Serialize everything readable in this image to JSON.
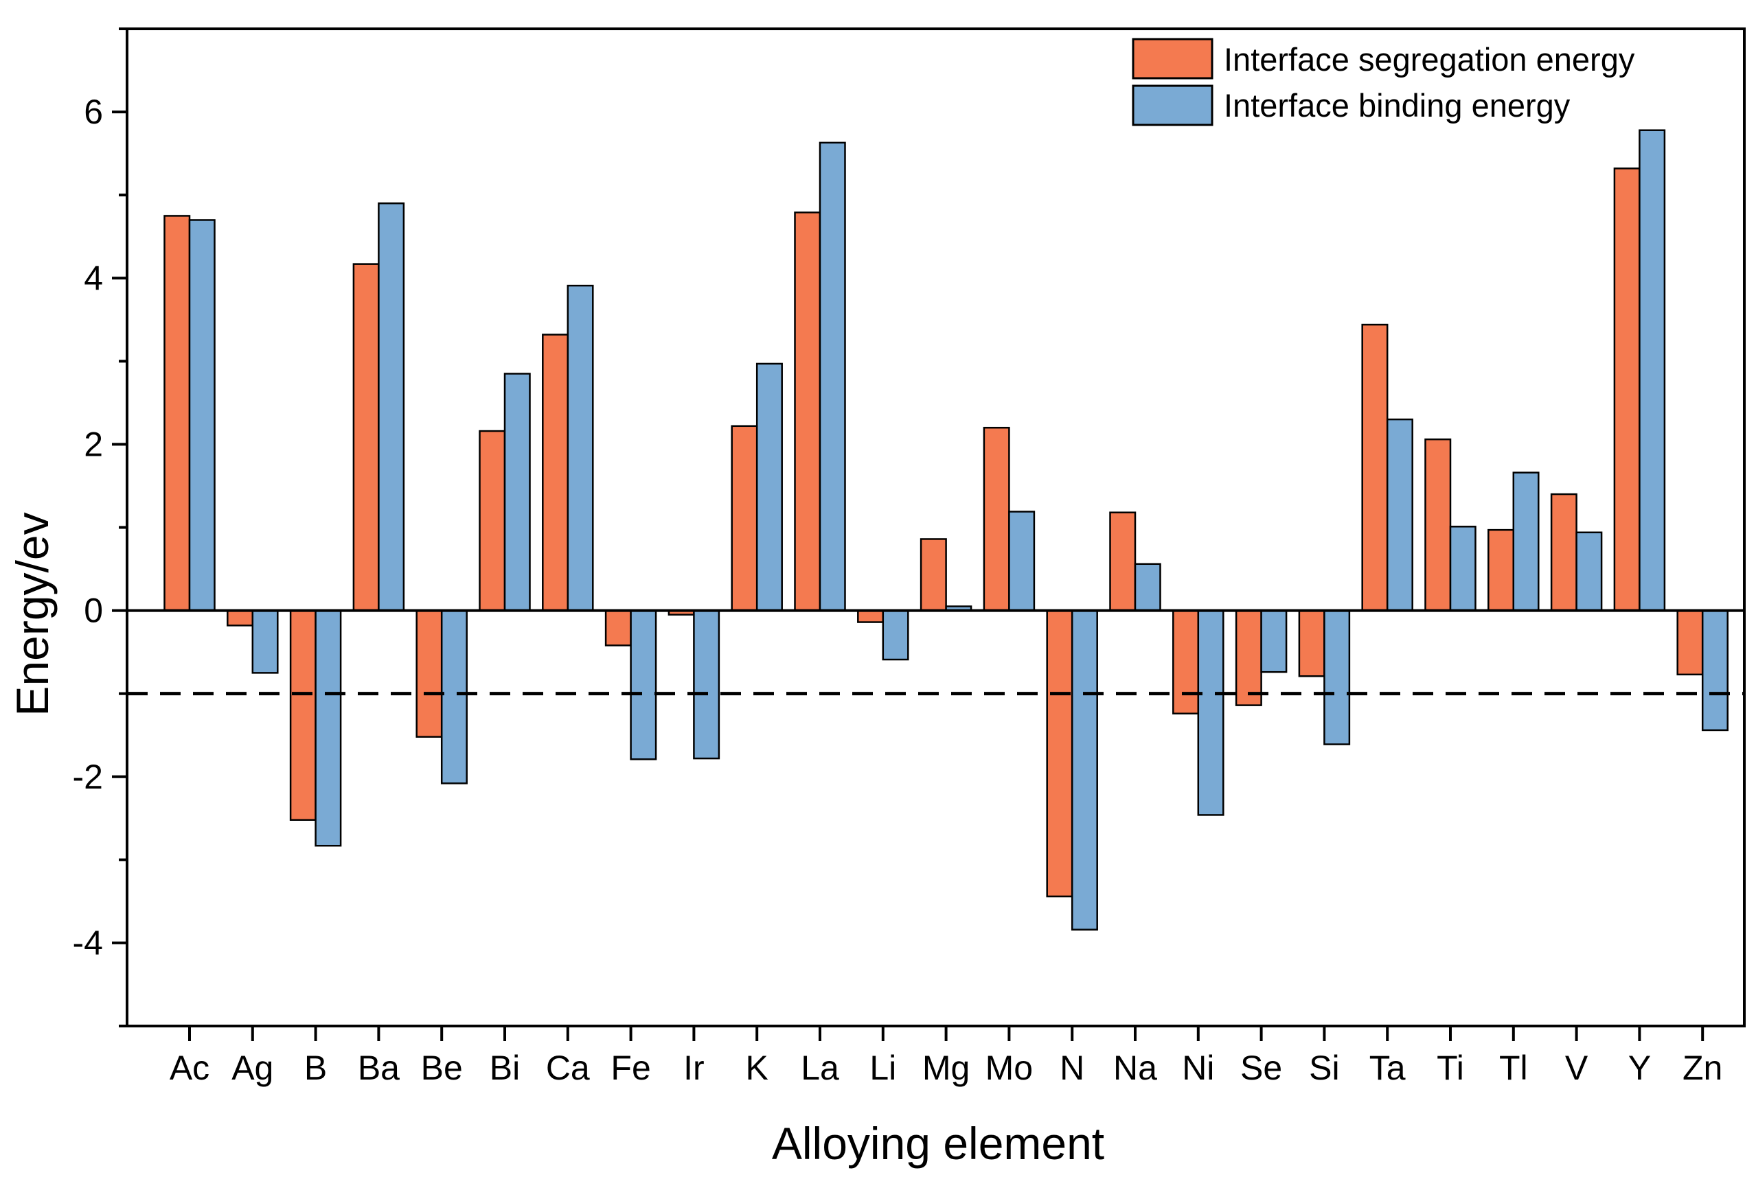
{
  "chart_data": {
    "type": "bar",
    "title": "",
    "xlabel": "Alloying element",
    "ylabel": "Energy/ev",
    "ylim": [
      -5,
      7
    ],
    "yticks": [
      -4,
      -2,
      0,
      2,
      4,
      6
    ],
    "ytick_labels": [
      "-4",
      "-2",
      "0",
      "2",
      "4",
      "6"
    ],
    "reference_line": {
      "y": -1,
      "style": "dashed",
      "color": "#000000"
    },
    "zero_line": {
      "y": 0
    },
    "legend_position": "top-right",
    "categories": [
      "Ac",
      "Ag",
      "B",
      "Ba",
      "Be",
      "Bi",
      "Ca",
      "Fe",
      "Ir",
      "K",
      "La",
      "Li",
      "Mg",
      "Mo",
      "N",
      "Na",
      "Ni",
      "Se",
      "Si",
      "Ta",
      "Ti",
      "Tl",
      "V",
      "Y",
      "Zn"
    ],
    "series": [
      {
        "name": "Interface segregation energy",
        "color": "#f47a50",
        "values": [
          4.75,
          -0.18,
          -2.52,
          4.17,
          -1.52,
          2.16,
          3.32,
          -0.42,
          -0.05,
          2.22,
          4.79,
          -0.14,
          0.86,
          2.2,
          -3.44,
          1.18,
          -1.24,
          -1.14,
          -0.79,
          3.44,
          2.06,
          0.97,
          1.4,
          5.32,
          -0.77
        ]
      },
      {
        "name": "Interface binding energy",
        "color": "#7aaad4",
        "values": [
          4.7,
          -0.75,
          -2.83,
          4.9,
          -2.08,
          2.85,
          3.91,
          -1.79,
          -1.78,
          2.97,
          5.63,
          -0.59,
          0.05,
          1.19,
          -3.84,
          0.56,
          -2.46,
          -0.74,
          -1.61,
          2.3,
          1.01,
          1.66,
          0.94,
          5.78,
          -1.44
        ]
      }
    ]
  }
}
